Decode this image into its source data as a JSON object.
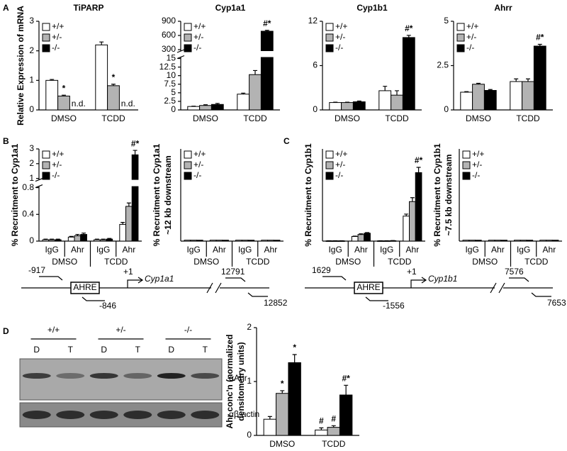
{
  "panels": [
    "A",
    "B",
    "C",
    "D"
  ],
  "chart_data": [
    {
      "type": "bar",
      "title": "TiPARP",
      "ylabel": "Relative Expression of mRNA",
      "categories": [
        "DMSO",
        "TCDD"
      ],
      "legend": "upper left",
      "ylim": [
        0,
        3
      ],
      "yticks": [
        0,
        1,
        2,
        3
      ],
      "series": [
        {
          "name": "+/+",
          "color": "#ffffff",
          "values": [
            1.0,
            2.2
          ],
          "errors": [
            0.03,
            0.1
          ],
          "annotations": [
            null,
            null
          ]
        },
        {
          "name": "+/-",
          "color": "#b3b3b3",
          "values": [
            0.47,
            0.82
          ],
          "errors": [
            0.03,
            0.05
          ],
          "annotations": [
            "*",
            "*"
          ]
        },
        {
          "name": "-/-",
          "color": "#000000",
          "values": [
            null,
            null
          ],
          "errors": [
            null,
            null
          ],
          "annotations": [
            "n.d.",
            "n.d."
          ]
        }
      ]
    },
    {
      "type": "bar",
      "title": "Cyp1a1",
      "categories": [
        "DMSO",
        "TCDD"
      ],
      "legend": "upper left",
      "segments": [
        {
          "ylim": [
            0,
            15
          ],
          "yticks": [
            0,
            2.5,
            5,
            7.5,
            10,
            12.5,
            15
          ]
        },
        {
          "ylim": [
            300,
            900
          ],
          "yticks": [
            300,
            600,
            900
          ]
        }
      ],
      "series": [
        {
          "name": "+/+",
          "color": "#ffffff",
          "values": [
            1.0,
            4.6
          ],
          "errors": [
            0.1,
            0.3
          ],
          "annotations": [
            null,
            null
          ]
        },
        {
          "name": "+/-",
          "color": "#b3b3b3",
          "values": [
            1.3,
            10.3
          ],
          "errors": [
            0.2,
            1.2
          ],
          "annotations": [
            null,
            null
          ]
        },
        {
          "name": "-/-",
          "color": "#000000",
          "values": [
            1.6,
            690
          ],
          "errors": [
            0.3,
            20
          ],
          "annotations": [
            null,
            "#*"
          ]
        }
      ]
    },
    {
      "type": "bar",
      "title": "Cyp1b1",
      "categories": [
        "DMSO",
        "TCDD"
      ],
      "legend": "upper left",
      "ylim": [
        0,
        12
      ],
      "yticks": [
        0,
        6,
        12
      ],
      "series": [
        {
          "name": "+/+",
          "color": "#ffffff",
          "values": [
            1.0,
            2.6
          ],
          "errors": [
            0.05,
            0.6
          ],
          "annotations": [
            null,
            null
          ]
        },
        {
          "name": "+/-",
          "color": "#b3b3b3",
          "values": [
            1.0,
            2.0
          ],
          "errors": [
            0.05,
            0.6
          ],
          "annotations": [
            null,
            null
          ]
        },
        {
          "name": "-/-",
          "color": "#000000",
          "values": [
            1.1,
            9.8
          ],
          "errors": [
            0.1,
            0.3
          ],
          "annotations": [
            null,
            "#*"
          ]
        }
      ]
    },
    {
      "type": "bar",
      "title": "Ahrr",
      "categories": [
        "DMSO",
        "TCDD"
      ],
      "legend": "upper left",
      "ylim": [
        0,
        5
      ],
      "yticks": [
        0,
        2.5,
        5
      ],
      "series": [
        {
          "name": "+/+",
          "color": "#ffffff",
          "values": [
            1.0,
            1.6
          ],
          "errors": [
            0.03,
            0.15
          ],
          "annotations": [
            null,
            null
          ]
        },
        {
          "name": "+/-",
          "color": "#b3b3b3",
          "values": [
            1.45,
            1.6
          ],
          "errors": [
            0.05,
            0.15
          ],
          "annotations": [
            null,
            null
          ]
        },
        {
          "name": "-/-",
          "color": "#000000",
          "values": [
            1.1,
            3.6
          ],
          "errors": [
            0.05,
            0.1
          ],
          "annotations": [
            null,
            "#*"
          ]
        }
      ]
    },
    {
      "type": "bar",
      "ylabel": "% Recruitment to Cyp1a1",
      "categories": [
        "IgG",
        "Ahr",
        "IgG",
        "Ahr"
      ],
      "groups": [
        "DMSO",
        "TCDD"
      ],
      "legend": "upper left",
      "segments": [
        {
          "ylim": [
            0,
            0.8
          ],
          "yticks": [
            0,
            0.4,
            0.8
          ]
        },
        {
          "ylim": [
            1,
            3
          ],
          "yticks": [
            1,
            2,
            3
          ]
        }
      ],
      "series": [
        {
          "name": "+/+",
          "color": "#ffffff",
          "values": [
            0.02,
            0.06,
            0.02,
            0.25
          ],
          "errors": [
            0.01,
            0.01,
            0.01,
            0.03
          ],
          "annotations": [
            null,
            null,
            null,
            null
          ]
        },
        {
          "name": "+/-",
          "color": "#b3b3b3",
          "values": [
            0.02,
            0.08,
            0.02,
            0.52
          ],
          "errors": [
            0.01,
            0.02,
            0.01,
            0.05
          ],
          "annotations": [
            null,
            null,
            null,
            null
          ]
        },
        {
          "name": "-/-",
          "color": "#000000",
          "values": [
            0.02,
            0.1,
            0.03,
            2.6
          ],
          "errors": [
            0.01,
            0.02,
            0.01,
            0.3
          ],
          "annotations": [
            null,
            null,
            null,
            "#*"
          ]
        }
      ]
    },
    {
      "type": "bar",
      "ylabel": [
        "% Recruitment to Cyp1a1",
        "~12 kb downstream"
      ],
      "categories": [
        "IgG",
        "Ahr",
        "IgG",
        "Ahr"
      ],
      "groups": [
        "DMSO",
        "TCDD"
      ],
      "legend": "upper left",
      "ylim": [
        0,
        1
      ],
      "series": [
        {
          "name": "+/+",
          "color": "#ffffff",
          "values": [
            0.01,
            0.01,
            0.01,
            0.01
          ]
        },
        {
          "name": "+/-",
          "color": "#b3b3b3",
          "values": [
            0.01,
            0.01,
            0.01,
            0.01
          ]
        },
        {
          "name": "-/-",
          "color": "#000000",
          "values": [
            0.01,
            0.01,
            0.01,
            0.01
          ]
        }
      ]
    },
    {
      "type": "bar",
      "ylabel": "% Recruitment to Cyp1b1",
      "categories": [
        "IgG",
        "Ahr",
        "IgG",
        "Ahr"
      ],
      "groups": [
        "DMSO",
        "TCDD"
      ],
      "legend": "upper left",
      "ylim": [
        0,
        7
      ],
      "series": [
        {
          "name": "+/+",
          "color": "#ffffff",
          "values": [
            0.02,
            0.35,
            0.02,
            1.9
          ],
          "errors": [
            0.01,
            0.03,
            0.01,
            0.15
          ],
          "annotations": [
            null,
            null,
            null,
            null
          ]
        },
        {
          "name": "+/-",
          "color": "#b3b3b3",
          "values": [
            0.02,
            0.5,
            0.02,
            3.0
          ],
          "errors": [
            0.01,
            0.05,
            0.01,
            0.3
          ],
          "annotations": [
            null,
            null,
            null,
            null
          ]
        },
        {
          "name": "-/-",
          "color": "#000000",
          "values": [
            0.02,
            0.6,
            0.03,
            5.2
          ],
          "errors": [
            0.01,
            0.05,
            0.01,
            0.4
          ],
          "annotations": [
            null,
            null,
            null,
            "#*"
          ]
        }
      ]
    },
    {
      "type": "bar",
      "ylabel": [
        "% Recruitment to Cyp1b1",
        "~7.5 kb downstream"
      ],
      "categories": [
        "IgG",
        "Ahr",
        "IgG",
        "Ahr"
      ],
      "groups": [
        "DMSO",
        "TCDD"
      ],
      "legend": "upper left",
      "ylim": [
        0,
        1
      ],
      "series": [
        {
          "name": "+/+",
          "color": "#ffffff",
          "values": [
            0.01,
            0.01,
            0.01,
            0.01
          ]
        },
        {
          "name": "+/-",
          "color": "#b3b3b3",
          "values": [
            0.01,
            0.01,
            0.01,
            0.01
          ]
        },
        {
          "name": "-/-",
          "color": "#000000",
          "values": [
            0.01,
            0.01,
            0.01,
            0.01
          ]
        }
      ]
    },
    {
      "type": "bar",
      "ylabel": [
        "Ahr conc'n (normalized",
        "densitometry units)"
      ],
      "categories": [
        "DMSO",
        "TCDD"
      ],
      "ylim": [
        0,
        2
      ],
      "yticks": [
        0,
        1,
        2
      ],
      "series": [
        {
          "name": "+/+",
          "color": "#ffffff",
          "values": [
            0.3,
            0.1
          ],
          "errors": [
            0.05,
            0.04
          ],
          "annotations": [
            null,
            "#"
          ]
        },
        {
          "name": "+/-",
          "color": "#b3b3b3",
          "values": [
            0.78,
            0.15
          ],
          "errors": [
            0.05,
            0.03
          ],
          "annotations": [
            "*",
            "#"
          ]
        },
        {
          "name": "-/-",
          "color": "#000000",
          "values": [
            1.35,
            0.75
          ],
          "errors": [
            0.15,
            0.18
          ],
          "annotations": [
            "*",
            "#*"
          ]
        }
      ]
    }
  ],
  "diagrams": [
    {
      "upstream": "-917",
      "element": "AHRE",
      "reverse": "-846",
      "tss": "+1",
      "gene": "Cyp1a1",
      "downstream": "12791",
      "downstream_reverse": "12852"
    },
    {
      "upstream": "1629",
      "element": "AHRE",
      "reverse": "-1556",
      "tss": "+1",
      "gene": "Cyp1b1",
      "downstream": "7576",
      "downstream_reverse": "7653"
    }
  ],
  "blot": {
    "genotypes": [
      "+/+",
      "+/-",
      "-/-"
    ],
    "lanes": [
      "D",
      "T",
      "D",
      "T",
      "D",
      "T"
    ],
    "antibodies": [
      "αAhr",
      "αβ-actin"
    ]
  }
}
